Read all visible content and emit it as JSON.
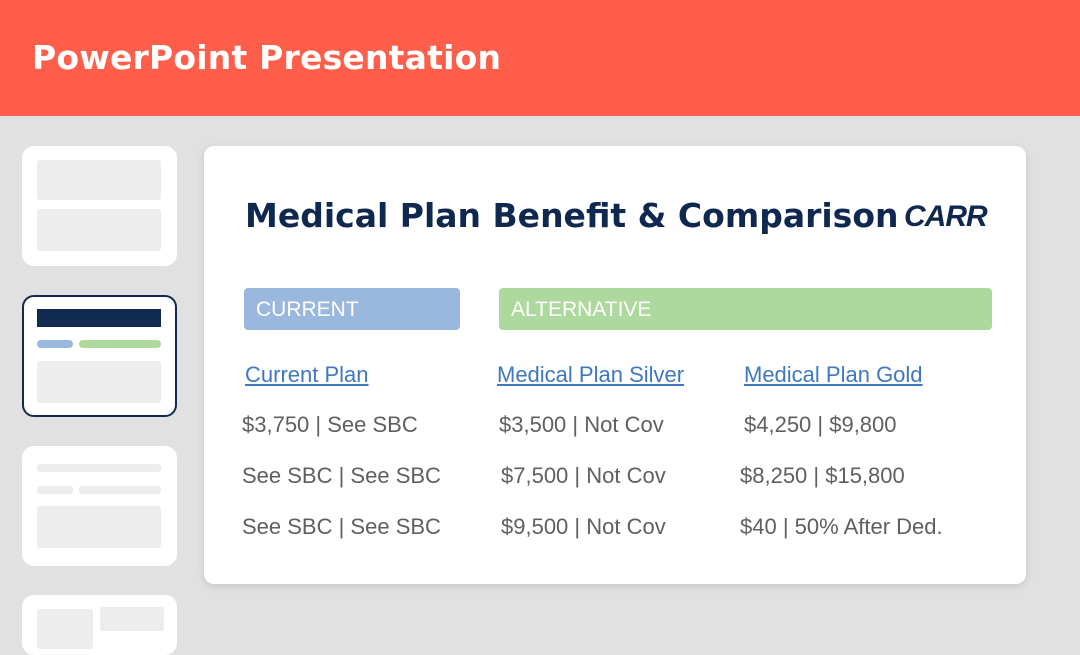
{
  "app": {
    "title": "PowerPoint Presentation"
  },
  "slide": {
    "title": "Medical Plan Benefit & Comparison",
    "logo": "CARR",
    "headers": {
      "current": "CURRENT",
      "alternative": "ALTERNATIVE"
    },
    "plans": [
      "Current Plan",
      "Medical Plan Silver",
      "Medical Plan Gold"
    ],
    "rows": [
      [
        "$3,750 | See SBC",
        "$3,500 | Not Cov",
        "$4,250 | $9,800"
      ],
      [
        "See SBC | See SBC",
        "$7,500 | Not Cov",
        "$8,250 | $15,800"
      ],
      [
        "See SBC | See SBC",
        "$9,500 | Not Cov",
        "$40 | 50% After Ded."
      ]
    ]
  },
  "colors": {
    "header_bar": "#ff5e4a",
    "title_navy": "#0f2850",
    "current_blue": "#9ab7dd",
    "alternative_green": "#aed99e",
    "link_blue": "#3f78c0"
  }
}
